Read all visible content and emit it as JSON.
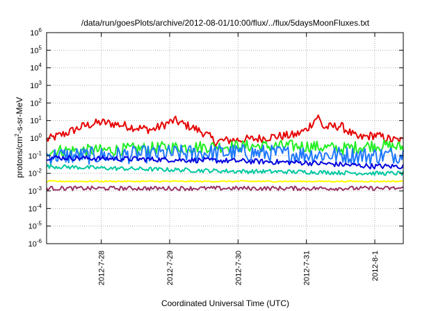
{
  "chart_data": {
    "type": "line",
    "title": "/data/run/goesPlots/archive/2012-08-01/10:00/flux/../flux/5daysMoonFluxes.txt",
    "xlabel": "Coordinated Universal Time (UTC)",
    "ylabel": {
      "base": "protons/cm",
      "sup": "2",
      "rest": "-s-sr-MeV"
    },
    "y_scale": "log",
    "ylim": [
      1e-06,
      1000000.0
    ],
    "y_ticks": [
      {
        "value": 1e-06,
        "base": "10",
        "exp": "-6"
      },
      {
        "value": 1e-05,
        "base": "10",
        "exp": "-5"
      },
      {
        "value": 0.0001,
        "base": "10",
        "exp": "-4"
      },
      {
        "value": 0.001,
        "base": "10",
        "exp": "-3"
      },
      {
        "value": 0.01,
        "base": "10",
        "exp": "-2"
      },
      {
        "value": 0.1,
        "base": "10",
        "exp": "-1"
      },
      {
        "value": 1,
        "base": "10",
        "exp": "0"
      },
      {
        "value": 10,
        "base": "10",
        "exp": "1"
      },
      {
        "value": 100,
        "base": "10",
        "exp": "2"
      },
      {
        "value": 1000,
        "base": "10",
        "exp": "3"
      },
      {
        "value": 10000,
        "base": "10",
        "exp": "4"
      },
      {
        "value": 100000,
        "base": "10",
        "exp": "5"
      },
      {
        "value": 1000000,
        "base": "10",
        "exp": "6"
      }
    ],
    "xlim": [
      "2012-07-27 04:48",
      "2012-08-01 10:00"
    ],
    "x_ticks": [
      {
        "value": "2012-07-28 00:00",
        "label": "2012-7-28"
      },
      {
        "value": "2012-07-29 00:00",
        "label": "2012-7-29"
      },
      {
        "value": "2012-07-30 00:00",
        "label": "2012-7-30"
      },
      {
        "value": "2012-07-31 00:00",
        "label": "2012-7-31"
      },
      {
        "value": "2012-08-01 00:00",
        "label": "2012-8-1"
      }
    ],
    "grid": true,
    "legend": "none",
    "series": [
      {
        "color": "#e60000",
        "noise": 0.25,
        "points": [
          [
            "2012-07-27 04:48",
            0.8
          ],
          [
            "2012-07-27 12:00",
            2.0
          ],
          [
            "2012-07-27 18:00",
            5.0
          ],
          [
            "2012-07-28 00:00",
            8.0
          ],
          [
            "2012-07-28 06:00",
            6.0
          ],
          [
            "2012-07-28 12:00",
            4.0
          ],
          [
            "2012-07-28 18:00",
            3.0
          ],
          [
            "2012-07-29 00:00",
            8.0
          ],
          [
            "2012-07-29 02:00",
            10.0
          ],
          [
            "2012-07-29 04:00",
            7.0
          ],
          [
            "2012-07-29 08:00",
            4.0
          ],
          [
            "2012-07-29 12:00",
            2.0
          ],
          [
            "2012-07-29 14:00",
            1.2
          ],
          [
            "2012-07-29 16:00",
            0.6
          ],
          [
            "2012-07-29 18:00",
            0.7
          ],
          [
            "2012-07-30 00:00",
            0.8
          ],
          [
            "2012-07-30 06:00",
            0.9
          ],
          [
            "2012-07-30 12:00",
            1.2
          ],
          [
            "2012-07-30 20:00",
            1.5
          ],
          [
            "2012-07-31 00:00",
            3.0
          ],
          [
            "2012-07-31 04:00",
            18.0
          ],
          [
            "2012-07-31 06:00",
            4.0
          ],
          [
            "2012-07-31 12:00",
            5.0
          ],
          [
            "2012-07-31 18:00",
            1.0
          ],
          [
            "2012-08-01 00:00",
            1.5
          ],
          [
            "2012-08-01 06:00",
            0.8
          ],
          [
            "2012-08-01 10:00",
            0.7
          ]
        ]
      },
      {
        "color": "#22ee22",
        "noise": 0.35,
        "points": [
          [
            "2012-07-27 04:48",
            0.2
          ],
          [
            "2012-07-28 00:00",
            0.2
          ],
          [
            "2012-07-29 00:00",
            0.3
          ],
          [
            "2012-07-30 00:00",
            0.35
          ],
          [
            "2012-07-31 00:00",
            0.35
          ],
          [
            "2012-07-31 12:00",
            0.25
          ],
          [
            "2012-08-01 00:00",
            0.4
          ],
          [
            "2012-08-01 10:00",
            0.3
          ]
        ]
      },
      {
        "color": "#1e78ff",
        "noise": 0.5,
        "points": [
          [
            "2012-07-27 04:48",
            0.1
          ],
          [
            "2012-07-28 00:00",
            0.1
          ],
          [
            "2012-07-29 00:00",
            0.13
          ],
          [
            "2012-07-30 00:00",
            0.15
          ],
          [
            "2012-07-31 00:00",
            0.12
          ],
          [
            "2012-08-01 00:00",
            0.1
          ],
          [
            "2012-08-01 10:00",
            0.12
          ]
        ]
      },
      {
        "color": "#0000dd",
        "noise": 0.15,
        "points": [
          [
            "2012-07-27 04:48",
            0.08
          ],
          [
            "2012-07-28 00:00",
            0.07
          ],
          [
            "2012-07-29 00:00",
            0.06
          ],
          [
            "2012-07-30 00:00",
            0.05
          ],
          [
            "2012-07-31 00:00",
            0.04
          ],
          [
            "2012-08-01 00:00",
            0.025
          ],
          [
            "2012-08-01 10:00",
            0.025
          ]
        ]
      },
      {
        "color": "#00c8a0",
        "noise": 0.12,
        "points": [
          [
            "2012-07-27 04:48",
            0.025
          ],
          [
            "2012-07-28 00:00",
            0.02
          ],
          [
            "2012-07-29 00:00",
            0.016
          ],
          [
            "2012-07-30 00:00",
            0.013
          ],
          [
            "2012-07-31 00:00",
            0.012
          ],
          [
            "2012-08-01 00:00",
            0.01
          ],
          [
            "2012-08-01 10:00",
            0.01
          ]
        ]
      },
      {
        "color": "#ffff00",
        "noise": 0.04,
        "points": [
          [
            "2012-07-27 04:48",
            0.0035
          ],
          [
            "2012-08-01 10:00",
            0.0035
          ]
        ]
      },
      {
        "color": "#993366",
        "noise": 0.12,
        "points": [
          [
            "2012-07-27 04:48",
            0.0014
          ],
          [
            "2012-08-01 10:00",
            0.0014
          ]
        ]
      }
    ]
  }
}
